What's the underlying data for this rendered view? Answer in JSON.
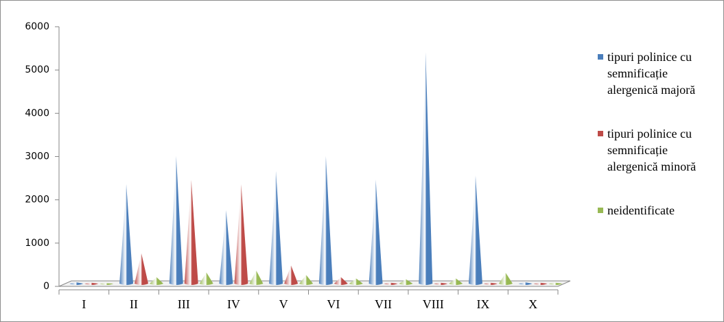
{
  "chart_data": {
    "type": "cone",
    "categories": [
      "I",
      "II",
      "III",
      "IV",
      "V",
      "VI",
      "VII",
      "VIII",
      "IX",
      "X"
    ],
    "series": [
      {
        "name": "tipuri polinice cu semnificație alergenică majoră",
        "color": "#4a7ebb",
        "values": [
          30,
          2300,
          2950,
          1700,
          2600,
          2950,
          2400,
          5350,
          2500,
          30
        ]
      },
      {
        "name": "tipuri polinice cu semnificație alergenică minoră",
        "color": "#be4b48",
        "values": [
          20,
          700,
          2400,
          2300,
          420,
          150,
          20,
          20,
          20,
          20
        ]
      },
      {
        "name": "neidentificate",
        "color": "#98b954",
        "values": [
          10,
          150,
          260,
          300,
          200,
          120,
          100,
          120,
          250,
          20
        ]
      }
    ],
    "ylim": [
      0,
      6000
    ],
    "yticks": [
      0,
      1000,
      2000,
      3000,
      4000,
      5000,
      6000
    ]
  }
}
